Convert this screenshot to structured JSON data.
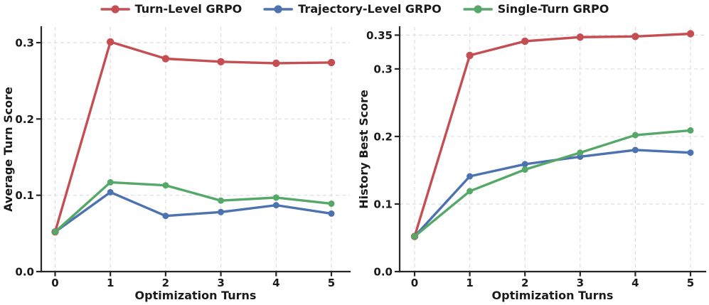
{
  "figure": {
    "background": "#ffffff"
  },
  "colors": {
    "red": "#c44e52",
    "blue": "#4c72b0",
    "green": "#55a868",
    "grid": "#dedede",
    "spine": "#262626",
    "text": "#1a1a1a"
  },
  "legend": {
    "items": [
      {
        "label": "Turn-Level GRPO",
        "color": "#c44e52"
      },
      {
        "label": "Trajectory-Level GRPO",
        "color": "#4c72b0"
      },
      {
        "label": "Single-Turn GRPO",
        "color": "#55a868"
      }
    ]
  },
  "chart_data": [
    {
      "type": "line",
      "panel": "left",
      "xlabel": "Optimization Turns",
      "ylabel": "Average Turn Score",
      "x": [
        0,
        1,
        2,
        3,
        4,
        5
      ],
      "xtick_labels": [
        "0",
        "1",
        "2",
        "3",
        "4",
        "5"
      ],
      "yticks": [
        {
          "value": 0.0,
          "label": "0.0"
        },
        {
          "value": 0.1,
          "label": "0.1"
        },
        {
          "value": 0.2,
          "label": "0.2"
        },
        {
          "value": 0.3,
          "label": "0.3"
        }
      ],
      "ylim": [
        0,
        0.3205
      ],
      "grid": true,
      "legend_position": "top-center-shared",
      "series": [
        {
          "name": "Turn-Level GRPO",
          "color": "#c44e52",
          "marker_r": 5.2,
          "values": [
            0.052,
            0.301,
            0.279,
            0.275,
            0.273,
            0.274
          ]
        },
        {
          "name": "Trajectory-Level GRPO",
          "color": "#4c72b0",
          "marker_r": 4.5,
          "values": [
            0.052,
            0.104,
            0.073,
            0.078,
            0.087,
            0.076
          ]
        },
        {
          "name": "Single-Turn GRPO",
          "color": "#55a868",
          "marker_r": 4.5,
          "values": [
            0.052,
            0.117,
            0.113,
            0.093,
            0.097,
            0.089
          ]
        }
      ]
    },
    {
      "type": "line",
      "panel": "right",
      "xlabel": "Optimization Turns",
      "ylabel": "History Best Score",
      "x": [
        0,
        1,
        2,
        3,
        4,
        5
      ],
      "xtick_labels": [
        "0",
        "1",
        "2",
        "3",
        "4",
        "5"
      ],
      "yticks": [
        {
          "value": 0.0,
          "label": "0.0"
        },
        {
          "value": 0.1,
          "label": "0.1"
        },
        {
          "value": 0.2,
          "label": "0.2"
        },
        {
          "value": 0.3,
          "label": "0.3"
        },
        {
          "value": 0.35,
          "label": "0.35"
        }
      ],
      "ylim": [
        0,
        0.362
      ],
      "grid": true,
      "legend_position": "top-center-shared",
      "series": [
        {
          "name": "Turn-Level GRPO",
          "color": "#c44e52",
          "marker_r": 5.2,
          "values": [
            0.052,
            0.32,
            0.341,
            0.347,
            0.348,
            0.352
          ]
        },
        {
          "name": "Trajectory-Level GRPO",
          "color": "#4c72b0",
          "marker_r": 4.5,
          "values": [
            0.052,
            0.141,
            0.159,
            0.17,
            0.18,
            0.176
          ]
        },
        {
          "name": "Single-Turn GRPO",
          "color": "#55a868",
          "marker_r": 4.5,
          "values": [
            0.052,
            0.119,
            0.151,
            0.176,
            0.202,
            0.209
          ]
        }
      ]
    }
  ]
}
